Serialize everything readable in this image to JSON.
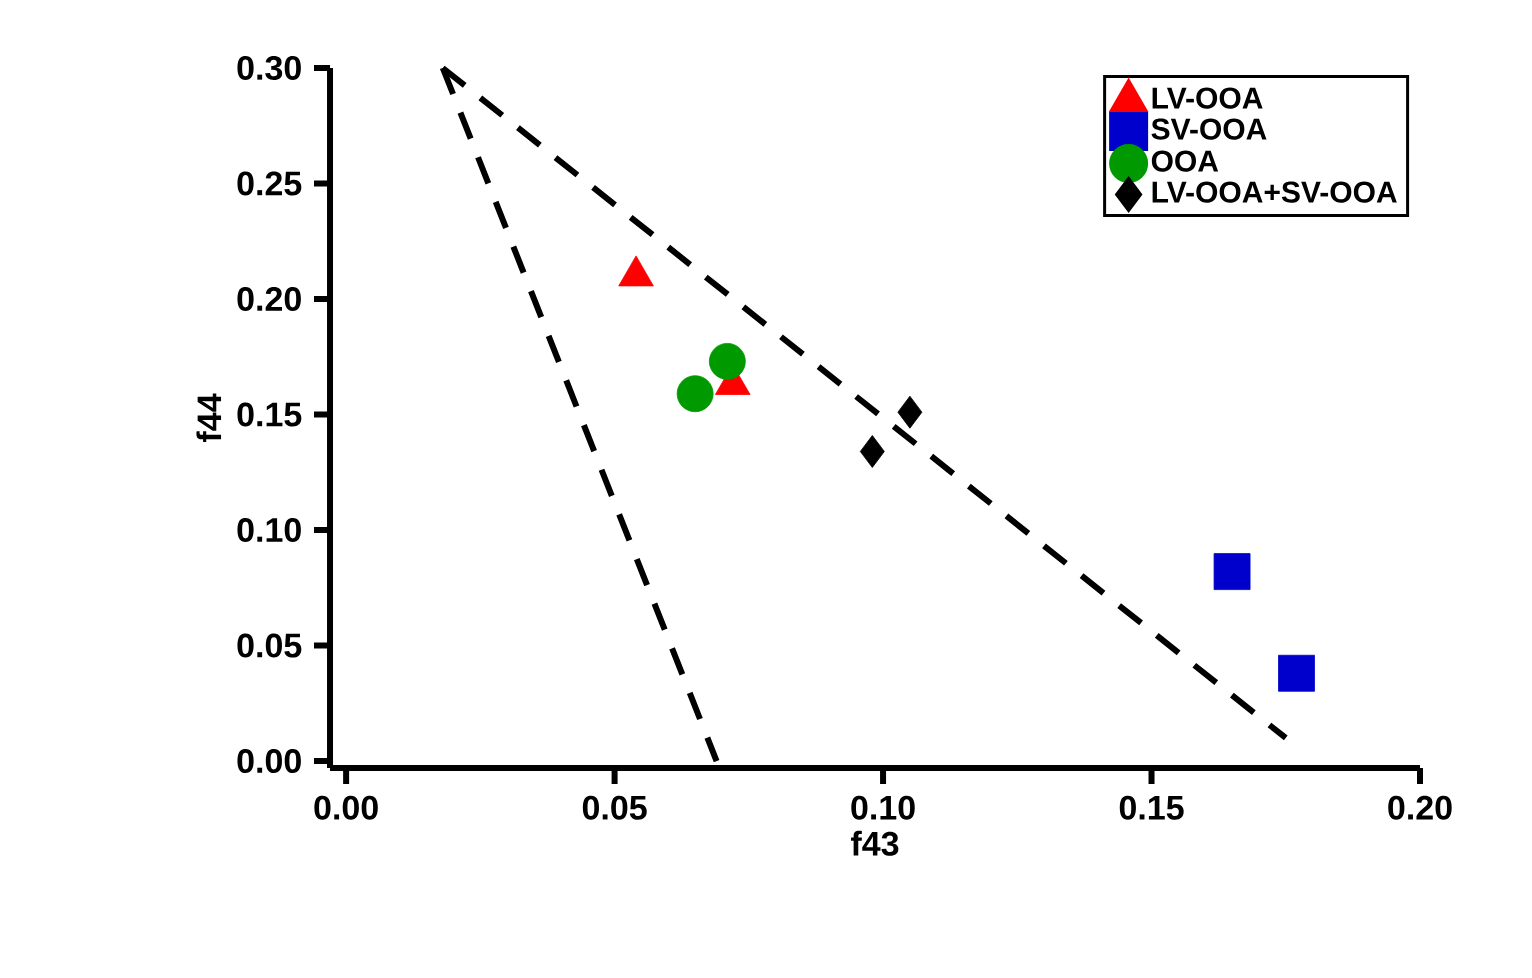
{
  "chart_data": {
    "type": "scatter",
    "xlabel": "f43",
    "ylabel": "f44",
    "xlim": [
      -0.003,
      0.2
    ],
    "ylim": [
      -0.003,
      0.3
    ],
    "xticks": [
      {
        "value": 0,
        "label": "0.00"
      },
      {
        "value": 0.05,
        "label": "0.05"
      },
      {
        "value": 0.1,
        "label": "0.10"
      },
      {
        "value": 0.15,
        "label": "0.15"
      },
      {
        "value": 0.2,
        "label": "0.20"
      }
    ],
    "yticks": [
      {
        "value": 0,
        "label": "0.00"
      },
      {
        "value": 0.05,
        "label": "0.05"
      },
      {
        "value": 0.1,
        "label": "0.10"
      },
      {
        "value": 0.15,
        "label": "0.15"
      },
      {
        "value": 0.2,
        "label": "0.20"
      },
      {
        "value": 0.25,
        "label": "0.25"
      },
      {
        "value": 0.3,
        "label": "0.30"
      }
    ],
    "grid": false,
    "legend": "top right",
    "series": [
      {
        "name": "LV-OOA",
        "color": "#ff0000",
        "marker": "triangle",
        "x": [
          0.054,
          0.072
        ],
        "values": [
          0.21,
          0.163
        ]
      },
      {
        "name": "SV-OOA",
        "color": "#0000cc",
        "marker": "square",
        "x": [
          0.165,
          0.177
        ],
        "values": [
          0.082,
          0.038
        ]
      },
      {
        "name": "OOA",
        "color": "#009900",
        "marker": "circle",
        "x": [
          0.065,
          0.071
        ],
        "values": [
          0.159,
          0.173
        ]
      },
      {
        "name": "LV-OOA+SV-OOA",
        "color": "#000000",
        "marker": "diamond",
        "x": [
          0.098,
          0.105
        ],
        "values": [
          0.134,
          0.151
        ]
      },
      {
        "type": "line",
        "color": "#000000",
        "marker": "none",
        "line_style": "dashed",
        "x": [
          0.018,
          0.069
        ],
        "values": [
          0.3,
          0.0
        ]
      },
      {
        "type": "line",
        "color": "#000000",
        "marker": "none",
        "line_style": "dashed",
        "x": [
          0.018,
          0.175
        ],
        "values": [
          0.3,
          0.01
        ]
      }
    ]
  }
}
